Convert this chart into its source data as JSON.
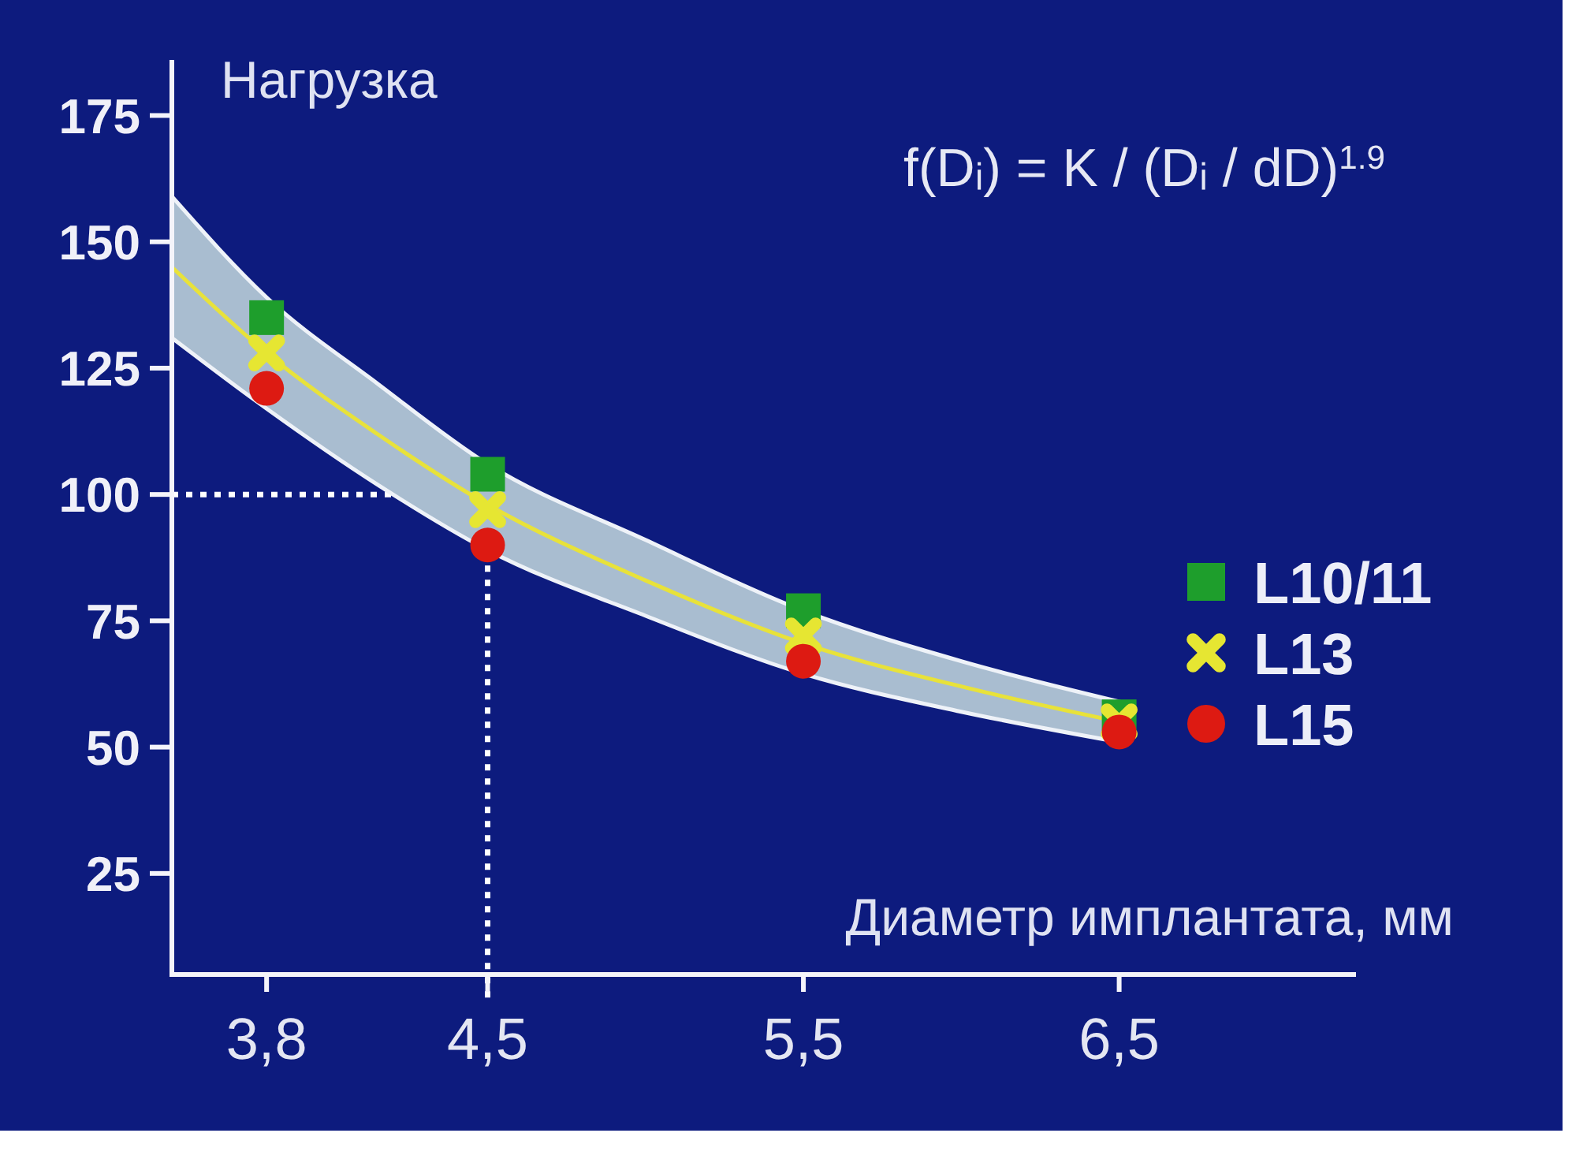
{
  "chart_data": {
    "type": "scatter",
    "ylabel": "Нагрузка",
    "xlabel": "Диаметр имплантата, мм",
    "annotations": [
      "f(Dᵢ) = K / (Dᵢ / dD)$^{1.9}$"
    ],
    "xlim": [
      3.5,
      7.25
    ],
    "xticks": [
      {
        "value": 3.8,
        "label": "3,8"
      },
      {
        "value": 4.5,
        "label": "4,5"
      },
      {
        "value": 5.5,
        "label": "5,5"
      },
      {
        "value": 6.5,
        "label": "6,5"
      }
    ],
    "ylim": [
      5,
      186
    ],
    "yticks": [
      25,
      50,
      75,
      100,
      125,
      150,
      175
    ],
    "x": [
      3.8,
      4.5,
      5.5,
      6.5
    ],
    "series": [
      {
        "type": "line",
        "color": "#e8e23a",
        "marker": "none",
        "x": [
          3.5,
          3.8,
          4.15,
          4.5,
          5.0,
          5.5,
          6.0,
          6.5
        ],
        "values": [
          145,
          128,
          112,
          98,
          83,
          70.5,
          62,
          55
        ],
        "lower": [
          131,
          117,
          102,
          89,
          76,
          64.5,
          57,
          51
        ],
        "upper": [
          159,
          139,
          122,
          106,
          91,
          77,
          67,
          59
        ]
      },
      {
        "name": "L10/11",
        "color": "#1e9e2c",
        "marker": "square",
        "values": [
          135,
          104,
          77,
          56
        ]
      },
      {
        "name": "L13",
        "color": "#e6e632",
        "marker": "cross",
        "values": [
          128,
          97,
          72,
          55
        ]
      },
      {
        "name": "L15",
        "color": "#dd1a12",
        "marker": "circle",
        "values": [
          121,
          90,
          67,
          53
        ]
      }
    ],
    "ref_lines": [
      {
        "axis": "y",
        "value": 100,
        "color": "#ffffff",
        "line_style": "dotted"
      },
      {
        "axis": "x",
        "value": 4.5,
        "color": "#ffffff",
        "line_style": "dotted"
      }
    ],
    "legend": "right"
  }
}
